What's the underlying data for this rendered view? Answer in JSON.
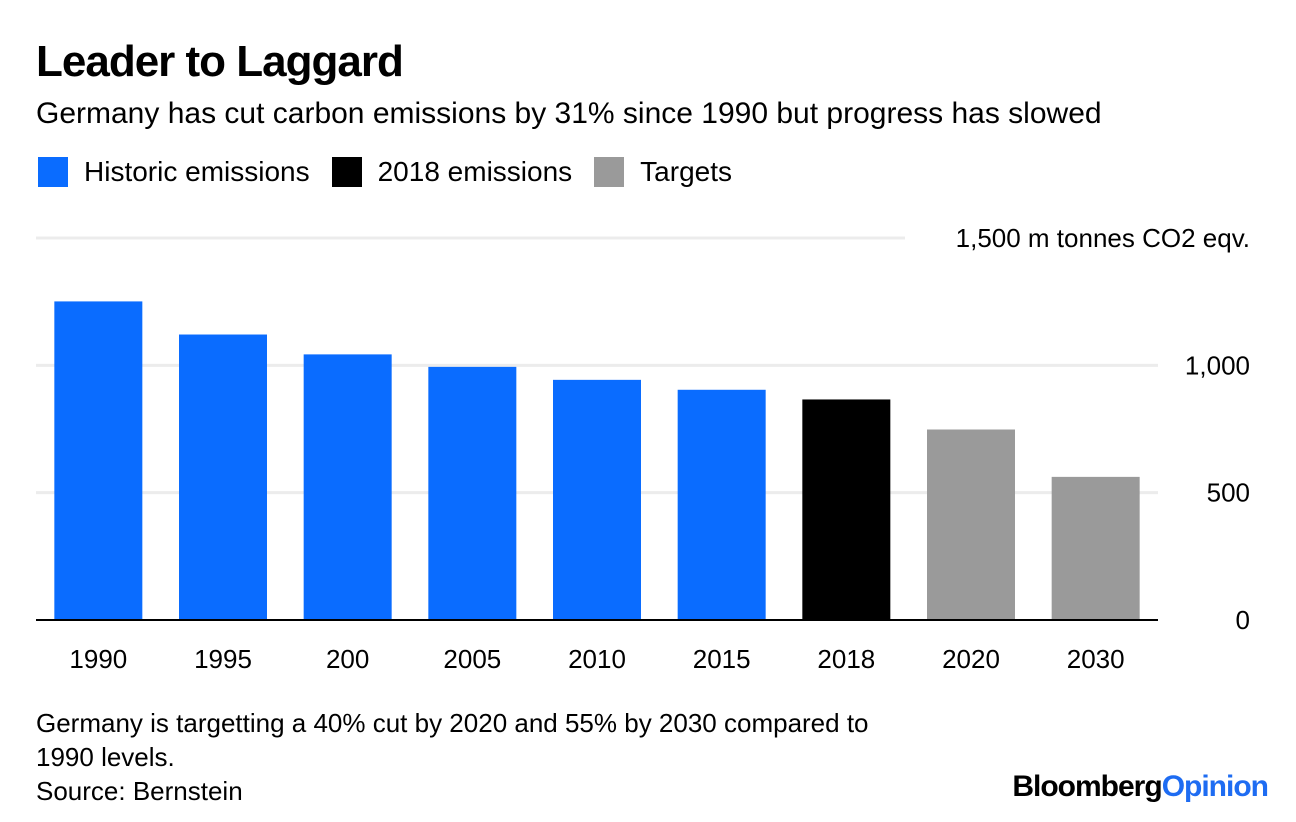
{
  "header": {
    "title": "Leader to Laggard",
    "subtitle": "Germany has cut carbon emissions by 31% since 1990 but progress has slowed"
  },
  "legend": [
    {
      "label": "Historic emissions",
      "color": "#0a6cff"
    },
    {
      "label": "2018 emissions",
      "color": "#000000"
    },
    {
      "label": "Targets",
      "color": "#9a9a9a"
    }
  ],
  "chart_data": {
    "type": "bar",
    "title": "Leader to Laggard",
    "subtitle": "Germany has cut carbon emissions by 31% since 1990 but progress has slowed",
    "categories": [
      "1990",
      "1995",
      "200",
      "2005",
      "2010",
      "2015",
      "2018",
      "2020",
      "2030"
    ],
    "values": [
      1251,
      1121,
      1043,
      994,
      943,
      904,
      866,
      748,
      562
    ],
    "groups": [
      "Historic emissions",
      "Historic emissions",
      "Historic emissions",
      "Historic emissions",
      "Historic emissions",
      "Historic emissions",
      "2018 emissions",
      "Targets",
      "Targets"
    ],
    "ylabel": "1,500 m tonnes CO2 eqv.",
    "ylim": [
      0,
      1500
    ],
    "yticks": [
      0,
      500,
      1000,
      1500
    ],
    "ytick_labels": [
      "0",
      "500",
      "1,000",
      "1,500 m tonnes CO2 eqv."
    ],
    "grid": true,
    "legend_position": "top-left"
  },
  "footer": {
    "note_line1": "Germany is targetting a 40% cut by 2020 and 55% by 2030 compared to",
    "note_line2": "1990 levels.",
    "source": "Source: Bernstein",
    "brand_part1": "Bloomberg",
    "brand_part2": "Opinion"
  }
}
